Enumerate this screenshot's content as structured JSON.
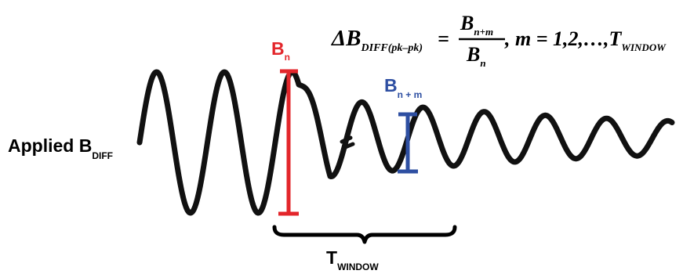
{
  "colors": {
    "waveform": "#111111",
    "bn_marker": "#e3262b",
    "bnm_marker": "#2e4fa2"
  },
  "labels": {
    "applied_main": "Applied B",
    "applied_sub": "DIFF",
    "bn_main": "B",
    "bn_sub": "n",
    "bnm_main": "B",
    "bnm_sub": "n + m",
    "twindow_main": "T",
    "twindow_sub": "WINDOW"
  },
  "equation": {
    "lhs_delta": "ΔB",
    "lhs_sub": "DIFF(pk–pk)",
    "equals": "=",
    "num_main": "B",
    "num_sub": "n+m",
    "den_main": "B",
    "den_sub": "n",
    "tail": ", m = 1,2,…,T",
    "tail_sub": "WINDOW"
  }
}
